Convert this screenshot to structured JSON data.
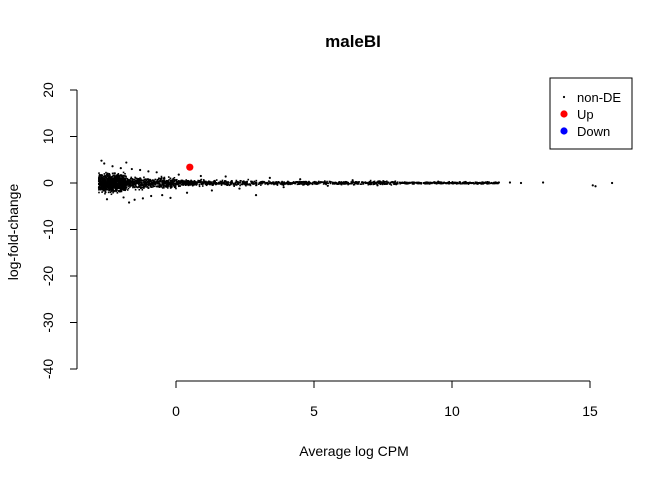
{
  "chart_data": {
    "type": "scatter",
    "title": "maleBI",
    "xlabel": "Average log CPM",
    "ylabel": "log-fold-change",
    "xlim": [
      -3,
      16
    ],
    "ylim": [
      -40,
      20
    ],
    "x_ticks": [
      0,
      5,
      10,
      15
    ],
    "y_ticks": [
      -40,
      -30,
      -20,
      -10,
      0,
      10,
      20
    ],
    "grid": false,
    "legend_position": "top-right",
    "legend": [
      {
        "label": "non-DE",
        "color": "#000000",
        "marker": "small-dot"
      },
      {
        "label": "Up",
        "color": "#ff0000",
        "marker": "dot"
      },
      {
        "label": "Down",
        "color": "#0000ff",
        "marker": "dot"
      }
    ],
    "series": [
      {
        "name": "non-DE",
        "color": "#000000",
        "points": [
          [
            -2.7,
            4.8
          ],
          [
            -2.6,
            4.2
          ],
          [
            -2.5,
            -3.5
          ],
          [
            -2.3,
            3.6
          ],
          [
            -2.0,
            3.2
          ],
          [
            -1.9,
            -3.1
          ],
          [
            -1.8,
            4.4
          ],
          [
            -1.7,
            -4.2
          ],
          [
            -1.6,
            3.0
          ],
          [
            -1.5,
            -3.6
          ],
          [
            -1.3,
            2.8
          ],
          [
            -1.2,
            -3.3
          ],
          [
            -1.0,
            2.5
          ],
          [
            -0.9,
            -2.8
          ],
          [
            -0.7,
            2.3
          ],
          [
            -0.5,
            -2.6
          ],
          [
            -0.2,
            -3.2
          ],
          [
            0.1,
            1.8
          ],
          [
            0.4,
            -2.1
          ],
          [
            0.9,
            1.5
          ],
          [
            1.3,
            -1.6
          ],
          [
            1.8,
            1.4
          ],
          [
            2.3,
            -1.2
          ],
          [
            2.9,
            -2.6
          ],
          [
            3.4,
            1.1
          ],
          [
            3.9,
            -0.9
          ],
          [
            4.5,
            0.8
          ],
          [
            5.5,
            -0.6
          ],
          [
            6.4,
            0.6
          ],
          [
            7.3,
            -0.5
          ],
          [
            9.5,
            0.3
          ],
          [
            10.5,
            0.2
          ],
          [
            11.3,
            0.1
          ],
          [
            11.7,
            0.1
          ],
          [
            12.1,
            0.1
          ],
          [
            12.5,
            0.0
          ],
          [
            13.3,
            0.1
          ],
          [
            15.1,
            -0.5
          ],
          [
            15.2,
            -0.7
          ],
          [
            15.8,
            0.0
          ]
        ]
      },
      {
        "name": "Up",
        "color": "#ff0000",
        "points": [
          [
            0.5,
            3.4
          ]
        ]
      },
      {
        "name": "Down",
        "color": "#0000ff",
        "points": []
      }
    ]
  }
}
